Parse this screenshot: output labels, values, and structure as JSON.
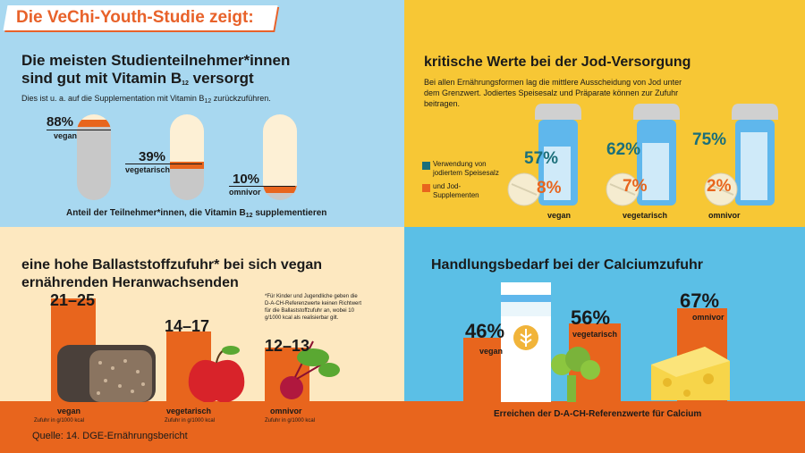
{
  "title": "Die VeChi-Youth-Studie zeigt:",
  "b12": {
    "heading_line1": "Die meisten Studienteilnehmer*innen",
    "heading_line2_pre": "sind gut mit Vitamin B",
    "heading_line2_sub": "12",
    "heading_line2_post": " versorgt",
    "note_pre": "Dies ist u. a. auf die Supplementation mit Vitamin B",
    "note_sub": "12",
    "note_post": " zurückzuführen.",
    "groups": [
      {
        "label": "vegan",
        "value": "88%",
        "fraction": 0.88
      },
      {
        "label": "vegetarisch",
        "value": "39%",
        "fraction": 0.39
      },
      {
        "label": "omnivor",
        "value": "10%",
        "fraction": 0.1
      }
    ],
    "caption_pre": "Anteil der Teilnehmer*innen, die Vitamin B",
    "caption_sub": "12",
    "caption_post": " supplementieren"
  },
  "iodine": {
    "heading": "kritische Werte bei der Jod-Versorgung",
    "text": "Bei allen Ernährungsformen lag die mittlere Ausscheidung von Jod unter dem Grenzwert. Jodiertes Speisesalz und Präparate können zur Zufuhr beitragen.",
    "legend": [
      {
        "label": "Verwendung von jodiertem Speisesalz",
        "color": "#1b6f7a"
      },
      {
        "label": "und Jod-Supplementen",
        "color": "#e8651d"
      }
    ],
    "groups": [
      {
        "label": "vegan",
        "salt": "57%",
        "supp": "8%"
      },
      {
        "label": "vegetarisch",
        "salt": "62%",
        "supp": "7%"
      },
      {
        "label": "omnivor",
        "salt": "75%",
        "supp": "2%"
      }
    ]
  },
  "fiber": {
    "heading_line1": "eine hohe Ballaststoffzufuhr* bei sich vegan",
    "heading_line2": "ernährenden Heranwachsenden",
    "footnote": "*Für Kinder und Jugendliche geben die D-A-CH-Referenzwerte keinen Richtwert für die Ballaststoffzufuhr an, wobei 10 g/1000 kcal als realisierbar gilt.",
    "unit": "Zufuhr in g/1000 kcal",
    "groups": [
      {
        "label": "vegan",
        "value": "21–25",
        "low": 21,
        "high": 25
      },
      {
        "label": "vegetarisch",
        "value": "14–17",
        "low": 14,
        "high": 17
      },
      {
        "label": "omnivor",
        "value": "12–13",
        "low": 12,
        "high": 13
      }
    ]
  },
  "calcium": {
    "heading": "Handlungsbedarf bei der Calciumzufuhr",
    "caption": "Erreichen der D-A-CH-Referenzwerte für Calcium",
    "groups": [
      {
        "label": "vegan",
        "value": "46%",
        "percent": 46
      },
      {
        "label": "vegetarisch",
        "value": "56%",
        "percent": 56
      },
      {
        "label": "omnivor",
        "value": "67%",
        "percent": 67
      }
    ]
  },
  "source": "Quelle: 14. DGE-Ernährungsbericht"
}
